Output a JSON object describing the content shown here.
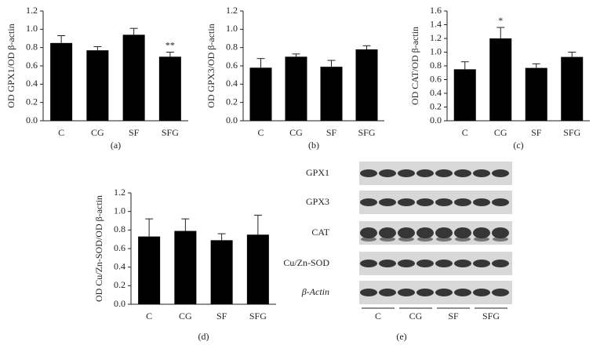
{
  "chart_data": [
    {
      "type": "bar",
      "caption": "(a)",
      "ylabel": "OD GPX1/OD β-actin",
      "categories": [
        "C",
        "CG",
        "SF",
        "SFG"
      ],
      "values": [
        0.85,
        0.77,
        0.94,
        0.7
      ],
      "errors": [
        0.08,
        0.04,
        0.07,
        0.05
      ],
      "color": "#000000",
      "ylim": [
        0,
        1.2
      ],
      "yticks": [
        {
          "value": 0,
          "label": "0.0"
        },
        0.2,
        0.4,
        0.6,
        0.8,
        {
          "value": 1,
          "label": "1.0"
        },
        1.2
      ],
      "annotations": [
        {
          "category": "SFG",
          "text": "**"
        }
      ]
    },
    {
      "type": "bar",
      "caption": "(b)",
      "ylabel": "OD GPX3/OD β-actin",
      "categories": [
        "C",
        "CG",
        "SF",
        "SFG"
      ],
      "values": [
        0.58,
        0.7,
        0.59,
        0.78
      ],
      "errors": [
        0.1,
        0.03,
        0.07,
        0.04
      ],
      "color": "#000000",
      "ylim": [
        0,
        1.2
      ],
      "yticks": [
        {
          "value": 0,
          "label": "0.0"
        },
        0.2,
        0.4,
        0.6,
        0.8,
        {
          "value": 1,
          "label": "1.0"
        },
        1.2
      ]
    },
    {
      "type": "bar",
      "caption": "(c)",
      "ylabel": "OD CAT/OD β-actin",
      "categories": [
        "C",
        "CG",
        "SF",
        "SFG"
      ],
      "values": [
        0.75,
        1.2,
        0.77,
        0.93
      ],
      "errors": [
        0.11,
        0.16,
        0.06,
        0.07
      ],
      "color": "#000000",
      "ylim": [
        0,
        1.6
      ],
      "yticks": [
        {
          "value": 0,
          "label": "0.0"
        },
        0.2,
        0.4,
        0.6,
        0.8,
        {
          "value": 1,
          "label": "1.0"
        },
        1.2,
        1.4,
        1.6
      ],
      "annotations": [
        {
          "category": "CG",
          "text": "*"
        }
      ]
    },
    {
      "type": "bar",
      "caption": "(d)",
      "ylabel": "OD Cu/Zn-SOD/OD β-actin",
      "categories": [
        "C",
        "CG",
        "SF",
        "SFG"
      ],
      "values": [
        0.73,
        0.79,
        0.69,
        0.75
      ],
      "errors": [
        0.19,
        0.13,
        0.07,
        0.21
      ],
      "color": "#000000",
      "ylim": [
        0,
        1.2
      ],
      "yticks": [
        {
          "value": 0,
          "label": "0.0"
        },
        0.2,
        0.4,
        0.6,
        0.8,
        {
          "value": 1,
          "label": "1.0"
        },
        1.2
      ]
    }
  ],
  "blot": {
    "caption": "(e)",
    "rows": [
      "GPX1",
      "GPX3",
      "CAT",
      "Cu/Zn-SOD",
      "β-Actin"
    ],
    "groups": [
      "C",
      "CG",
      "SF",
      "SFG"
    ]
  }
}
